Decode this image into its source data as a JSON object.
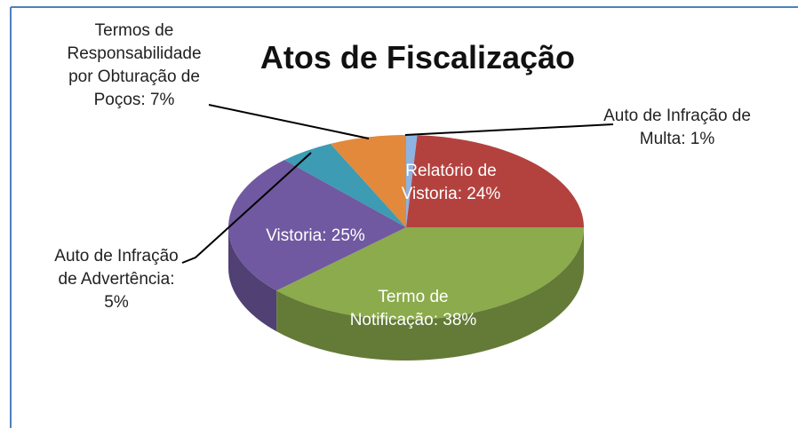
{
  "chart_data": {
    "type": "pie",
    "title": "Atos de Fiscalização",
    "categories": [
      "Auto de Infração de Multa: 1%",
      "Relatório de Vistoria: 24%",
      "Termo de Notificação: 38%",
      "Vistoria: 25%",
      "Auto de Infração de Advertência: 5%",
      "Termos de Responsabilidade por Obturação de Poços: 7%"
    ],
    "values": [
      1,
      24,
      38,
      25,
      5,
      7
    ],
    "colors": [
      "#8db3e2",
      "#b3423f",
      "#8bab4c",
      "#7059a0",
      "#3d9bb3",
      "#e2893b"
    ]
  }
}
